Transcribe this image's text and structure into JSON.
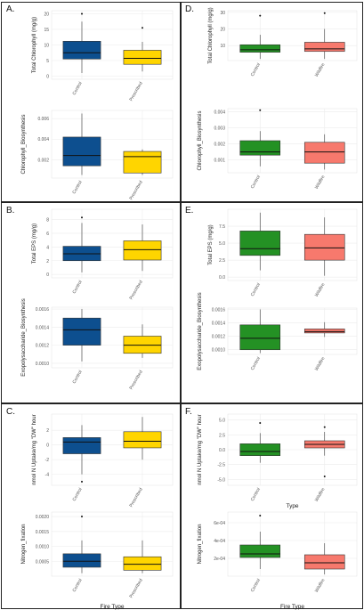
{
  "colors": {
    "blue": "#0d4f8f",
    "yellow": "#ffd500",
    "green": "#249124",
    "salmon": "#f7796d"
  },
  "outline_color": "#333333",
  "panels": [
    {
      "letter": "A."
    },
    {
      "letter": "D."
    },
    {
      "letter": "B."
    },
    {
      "letter": "E."
    },
    {
      "letter": "C."
    },
    {
      "letter": "F."
    }
  ],
  "chart_data": [
    {
      "type": "box",
      "panel": "A.",
      "xlabel": "",
      "ylabel": "Total Chlorophyll (mg/g)",
      "ylim": [
        -1,
        21
      ],
      "yticks": [
        "0",
        "5",
        "10",
        "15",
        "20"
      ],
      "ytick_values": [
        0,
        5,
        10,
        15,
        20
      ],
      "categories": [
        "Control",
        "Prescribed"
      ],
      "colors": [
        "blue",
        "yellow"
      ],
      "boxes": [
        {
          "category": "Control",
          "whisker_low": 1,
          "q1": 5.5,
          "median": 7.5,
          "q3": 11.2,
          "whisker_high": 17.5,
          "outliers": [
            20
          ]
        },
        {
          "category": "Prescribed",
          "whisker_low": 1.5,
          "q1": 3.8,
          "median": 5.7,
          "q3": 8.3,
          "whisker_high": 11,
          "outliers": [
            15.5
          ]
        }
      ]
    },
    {
      "type": "box",
      "panel": "A.",
      "xlabel": "",
      "ylabel": "Chlorophyll_Biosynthesis",
      "ylim": [
        0.0002,
        0.0068
      ],
      "yticks": [
        "0.002",
        "0.004",
        "0.006"
      ],
      "ytick_values": [
        0.002,
        0.004,
        0.006
      ],
      "categories": [
        "Control",
        "Prescribed"
      ],
      "colors": [
        "blue",
        "yellow"
      ],
      "boxes": [
        {
          "category": "Control",
          "whisker_low": 0.0005,
          "q1": 0.0014,
          "median": 0.0024,
          "q3": 0.0042,
          "whisker_high": 0.0065,
          "outliers": []
        },
        {
          "category": "Prescribed",
          "whisker_low": 0.0005,
          "q1": 0.0007,
          "median": 0.0023,
          "q3": 0.0028,
          "whisker_high": 0.003,
          "outliers": []
        }
      ]
    },
    {
      "type": "box",
      "panel": "D.",
      "xlabel": "",
      "ylabel": "Total Chlorophyll (mg/g)",
      "ylim": [
        1,
        31
      ],
      "yticks": [
        "10",
        "20",
        "30"
      ],
      "ytick_values": [
        10,
        20,
        30
      ],
      "categories": [
        "Control",
        "Wildfire"
      ],
      "colors": [
        "green",
        "salmon"
      ],
      "boxes": [
        {
          "category": "Control",
          "whisker_low": 2,
          "q1": 6,
          "median": 7.5,
          "q3": 10.5,
          "whisker_high": 16.5,
          "outliers": [
            28
          ]
        },
        {
          "category": "Wildfire",
          "whisker_low": 2,
          "q1": 6.5,
          "median": 8,
          "q3": 12,
          "whisker_high": 20,
          "outliers": [
            29.5
          ]
        }
      ]
    },
    {
      "type": "box",
      "panel": "D.",
      "xlabel": "",
      "ylabel": "Chlorophyll_Biosynthesis",
      "ylim": [
        0.0002,
        0.0042
      ],
      "yticks": [
        "0.001",
        "0.002",
        "0.003",
        "0.004"
      ],
      "ytick_values": [
        0.001,
        0.002,
        0.003,
        0.004
      ],
      "categories": [
        "Control",
        "Wildfire"
      ],
      "colors": [
        "green",
        "salmon"
      ],
      "boxes": [
        {
          "category": "Control",
          "whisker_low": 0.0006,
          "q1": 0.0013,
          "median": 0.0015,
          "q3": 0.0022,
          "whisker_high": 0.0028,
          "outliers": [
            0.0041
          ]
        },
        {
          "category": "Wildfire",
          "whisker_low": 0.0004,
          "q1": 0.0008,
          "median": 0.0015,
          "q3": 0.0021,
          "whisker_high": 0.0026,
          "outliers": []
        }
      ]
    },
    {
      "type": "box",
      "panel": "B.",
      "xlabel": "",
      "ylabel": "Total EPS (mg/g)",
      "ylim": [
        -0.5,
        9.5
      ],
      "yticks": [
        "0",
        "2",
        "4",
        "6",
        "8"
      ],
      "ytick_values": [
        0,
        2,
        4,
        6,
        8
      ],
      "categories": [
        "Control",
        "Prescribed"
      ],
      "colors": [
        "blue",
        "yellow"
      ],
      "boxes": [
        {
          "category": "Control",
          "whisker_low": 0.3,
          "q1": 2,
          "median": 3,
          "q3": 4.1,
          "whisker_high": 7.5,
          "outliers": [
            8.3
          ]
        },
        {
          "category": "Prescribed",
          "whisker_low": 0.5,
          "q1": 2.1,
          "median": 3.6,
          "q3": 4.9,
          "whisker_high": 7.3,
          "outliers": []
        }
      ]
    },
    {
      "type": "box",
      "panel": "B.",
      "xlabel": "",
      "ylabel": "Exopolysaccharide_Biosynthesis",
      "ylim": [
        0.00095,
        0.00162
      ],
      "yticks": [
        "0.0010",
        "0.0012",
        "0.0014",
        "0.0016"
      ],
      "ytick_values": [
        0.001,
        0.0012,
        0.0014,
        0.0016
      ],
      "categories": [
        "Control",
        "Prescribed"
      ],
      "colors": [
        "blue",
        "yellow"
      ],
      "boxes": [
        {
          "category": "Control",
          "whisker_low": 0.00102,
          "q1": 0.0012,
          "median": 0.00137,
          "q3": 0.0015,
          "whisker_high": 0.0016,
          "outliers": []
        },
        {
          "category": "Prescribed",
          "whisker_low": 0.00106,
          "q1": 0.00111,
          "median": 0.0012,
          "q3": 0.0013,
          "whisker_high": 0.00143,
          "outliers": []
        }
      ]
    },
    {
      "type": "box",
      "panel": "E.",
      "xlabel": "",
      "ylabel": "Total EPS (mg/g)",
      "ylim": [
        -0.5,
        10
      ],
      "yticks": [
        "0.0",
        "2.5",
        "5.0",
        "7.5"
      ],
      "ytick_values": [
        0,
        2.5,
        5,
        7.5
      ],
      "categories": [
        "Control",
        "Wildfire"
      ],
      "colors": [
        "green",
        "salmon"
      ],
      "boxes": [
        {
          "category": "Control",
          "whisker_low": 1,
          "q1": 3.2,
          "median": 4.2,
          "q3": 6.8,
          "whisker_high": 9.5,
          "outliers": []
        },
        {
          "category": "Wildfire",
          "whisker_low": 0.2,
          "q1": 2.5,
          "median": 4.3,
          "q3": 6.3,
          "whisker_high": 8.8,
          "outliers": []
        }
      ]
    },
    {
      "type": "box",
      "panel": "E.",
      "xlabel": "",
      "ylabel": "Exopolysaccharide_Biosynthesis",
      "ylim": [
        0.00093,
        0.00162
      ],
      "yticks": [
        "0.0010",
        "0.0012",
        "0.0014",
        "0.0016"
      ],
      "ytick_values": [
        0.001,
        0.0012,
        0.0014,
        0.0016
      ],
      "categories": [
        "Control",
        "Wildfire"
      ],
      "colors": [
        "green",
        "salmon"
      ],
      "boxes": [
        {
          "category": "Control",
          "whisker_low": 0.00095,
          "q1": 0.001,
          "median": 0.00117,
          "q3": 0.00137,
          "whisker_high": 0.0016,
          "outliers": []
        },
        {
          "category": "Wildfire",
          "whisker_low": 0.00119,
          "q1": 0.00125,
          "median": 0.00127,
          "q3": 0.00131,
          "whisker_high": 0.00141,
          "outliers": []
        }
      ]
    },
    {
      "type": "box",
      "panel": "C.",
      "xlabel": "",
      "ylabel": "nmol N Uptake/mg \"DW\" hour",
      "ylim": [
        -5.5,
        4.2
      ],
      "yticks": [
        "-4",
        "-2",
        "0",
        "2"
      ],
      "ytick_values": [
        -4,
        -2,
        0,
        2
      ],
      "categories": [
        "Control",
        "Prescribed"
      ],
      "colors": [
        "blue",
        "yellow"
      ],
      "boxes": [
        {
          "category": "Control",
          "whisker_low": -4,
          "q1": -1.2,
          "median": 0.4,
          "q3": 1,
          "whisker_high": 2.7,
          "outliers": [
            -5
          ]
        },
        {
          "category": "Prescribed",
          "whisker_low": -2,
          "q1": -0.4,
          "median": 0.5,
          "q3": 1.8,
          "whisker_high": 3.8,
          "outliers": []
        }
      ]
    },
    {
      "type": "box",
      "panel": "C.",
      "xlabel": "Fire Type",
      "ylabel": "Nitrogen_fixation",
      "ylim": [
        0,
        0.00215
      ],
      "yticks": [
        "0.0005",
        "0.0010",
        "0.0015",
        "0.0020"
      ],
      "ytick_values": [
        0.0005,
        0.001,
        0.0015,
        0.002
      ],
      "categories": [
        "Control",
        "Prescribed"
      ],
      "colors": [
        "blue",
        "yellow"
      ],
      "boxes": [
        {
          "category": "Control",
          "whisker_low": 0.0001,
          "q1": 0.0003,
          "median": 0.0005,
          "q3": 0.00075,
          "whisker_high": 0.0012,
          "outliers": [
            0.002
          ]
        },
        {
          "category": "Prescribed",
          "whisker_low": 0.0001,
          "q1": 0.0002,
          "median": 0.0004,
          "q3": 0.00065,
          "whisker_high": 0.0012,
          "outliers": []
        }
      ]
    },
    {
      "type": "box",
      "panel": "F.",
      "xlabel": "Type",
      "ylabel": "nmol N Uptake/mg \"DW\" hour",
      "ylim": [
        -6,
        6
      ],
      "yticks": [
        "-5.0",
        "-2.5",
        "0.0",
        "2.5",
        "5.0"
      ],
      "ytick_values": [
        -5,
        -2.5,
        0,
        2.5,
        5
      ],
      "categories": [
        "Control",
        "Wildfire"
      ],
      "colors": [
        "green",
        "salmon"
      ],
      "boxes": [
        {
          "category": "Control",
          "whisker_low": -2.2,
          "q1": -1,
          "median": -0.3,
          "q3": 1,
          "whisker_high": 2.8,
          "outliers": [
            4.5
          ]
        },
        {
          "category": "Wildfire",
          "whisker_low": -1,
          "q1": 0.3,
          "median": 0.9,
          "q3": 1.5,
          "whisker_high": 3,
          "outliers": [
            3.8,
            -4.5
          ]
        }
      ]
    },
    {
      "type": "box",
      "panel": "F.",
      "xlabel": "Fire Type",
      "ylabel": "Nitrogen_fixation",
      "ylim": [
        0,
        0.00072
      ],
      "yticks": [
        "2e-04",
        "4e-04",
        "6e-04"
      ],
      "ytick_values": [
        0.0002,
        0.0004,
        0.0006
      ],
      "categories": [
        "Control",
        "Wildfire"
      ],
      "colors": [
        "green",
        "salmon"
      ],
      "boxes": [
        {
          "category": "Control",
          "whisker_low": 8e-05,
          "q1": 0.00021,
          "median": 0.00025,
          "q3": 0.00035,
          "whisker_high": 0.0005,
          "outliers": [
            0.00068
          ]
        },
        {
          "category": "Wildfire",
          "whisker_low": 2e-05,
          "q1": 8e-05,
          "median": 0.00015,
          "q3": 0.00024,
          "whisker_high": 0.00037,
          "outliers": []
        }
      ]
    }
  ]
}
